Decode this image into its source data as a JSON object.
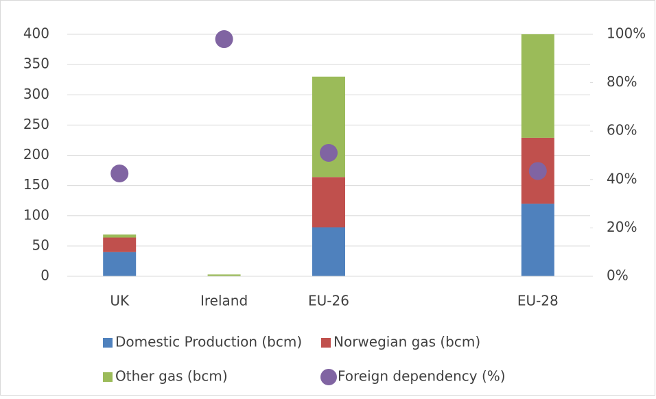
{
  "chart_data": {
    "type": "bar",
    "categories": [
      "UK",
      "Ireland",
      "EU-26",
      null,
      "EU-28"
    ],
    "stacked": true,
    "series": [
      {
        "name": "Domestic Production (bcm)",
        "color": "#4f81bd",
        "values": [
          40,
          0,
          81,
          null,
          120
        ]
      },
      {
        "name": "Norwegian gas (bcm)",
        "color": "#c0504d",
        "values": [
          24,
          0,
          83,
          null,
          109
        ]
      },
      {
        "name": "Other gas (bcm)",
        "color": "#9bbb59",
        "values": [
          5,
          3,
          166,
          null,
          171
        ]
      },
      {
        "name": "Foreign dependency (%)",
        "color": "#8064a2",
        "type": "scatter",
        "axis": "y2",
        "values": [
          42.5,
          98,
          51,
          null,
          43.5
        ]
      }
    ],
    "ylim": [
      0,
      400
    ],
    "yticks": [
      0,
      50,
      100,
      150,
      200,
      250,
      300,
      350,
      400
    ],
    "y2lim": [
      0,
      100
    ],
    "y2ticks": [
      {
        "value": 0,
        "label": "0%"
      },
      {
        "value": 20,
        "label": "20%"
      },
      {
        "value": 40,
        "label": "40%"
      },
      {
        "value": 60,
        "label": "60%"
      },
      {
        "value": 80,
        "label": "80%"
      },
      {
        "value": 100,
        "label": "100%"
      }
    ],
    "grid": true,
    "legend": "bottom"
  }
}
